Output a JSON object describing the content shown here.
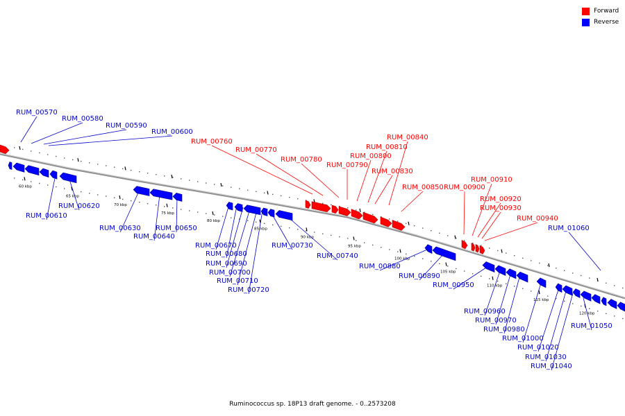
{
  "title": "Ruminococcus sp. 18P13 draft genome. - 0..2573208",
  "colors": {
    "forward": "#ff0000",
    "reverse": "#0000ff",
    "backbone": "#909090",
    "forward_label": "#ff0000",
    "reverse_label": "#0000cc"
  },
  "legend": {
    "forward": "Forward",
    "reverse": "Reverse"
  },
  "ticks": [
    "60 kbp",
    "65 kbp",
    "70 kbp",
    "75 kbp",
    "80 kbp",
    "85 kbp",
    "90 kbp",
    "95 kbp",
    "100 kbp",
    "105 kbp",
    "110 kbp",
    "115 kbp",
    "120 kbp"
  ],
  "forward_genes": [
    "RUM_00760",
    "RUM_00770",
    "RUM_00780",
    "RUM_00790",
    "RUM_00800",
    "RUM_00810",
    "RUM_00830",
    "RUM_00840",
    "RUM_00850",
    "RUM_00900",
    "RUM_00910",
    "RUM_00920",
    "RUM_00930",
    "RUM_00940"
  ],
  "reverse_genes": [
    "RUM_00570",
    "RUM_00580",
    "RUM_00590",
    "RUM_00600",
    "RUM_00610",
    "RUM_00620",
    "RUM_00630",
    "RUM_00640",
    "RUM_00650",
    "RUM_00670",
    "RUM_00680",
    "RUM_00690",
    "RUM_00700",
    "RUM_00710",
    "RUM_00720",
    "RUM_00730",
    "RUM_00740",
    "RUM_00880",
    "RUM_00890",
    "RUM_00950",
    "RUM_00960",
    "RUM_00970",
    "RUM_00980",
    "RUM_01000",
    "RUM_01020",
    "RUM_01030",
    "RUM_01040",
    "RUM_01050",
    "RUM_01060"
  ]
}
